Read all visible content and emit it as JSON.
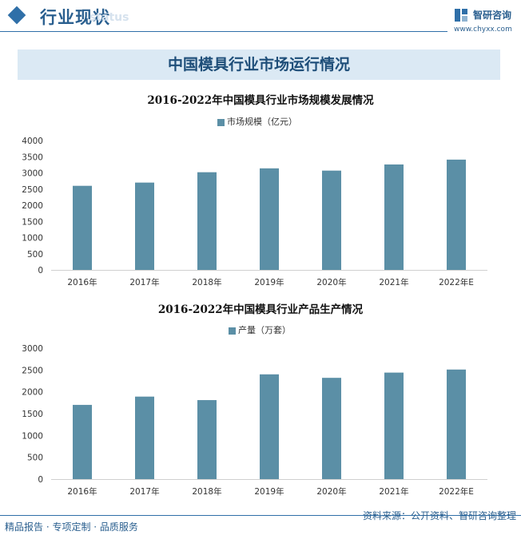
{
  "header": {
    "section_title": "行业现状",
    "ghost_text": "status"
  },
  "logo": {
    "name": "智研咨询",
    "url": "www.chyxx.com"
  },
  "banner": {
    "title": "中国模具行业市场运行情况"
  },
  "colors": {
    "bar": "#5b8fa6",
    "axis": "#d0d0d0",
    "accent": "#2f6fa8"
  },
  "chart_data": [
    {
      "type": "bar",
      "title": "2016-2022年中国模具行业市场规模发展情况",
      "categories": [
        "2016年",
        "2017年",
        "2018年",
        "2019年",
        "2020年",
        "2021年",
        "2022年E"
      ],
      "series": [
        {
          "name": "市场规模（亿元）",
          "values": [
            2600,
            2700,
            3020,
            3140,
            3070,
            3260,
            3410
          ]
        }
      ],
      "ylim": [
        0,
        4000
      ],
      "yticks": [
        0,
        500,
        1000,
        1500,
        2000,
        2500,
        3000,
        3500,
        4000
      ],
      "legend": "top-center",
      "grid": false
    },
    {
      "type": "bar",
      "title": "2016-2022年中国模具行业产品生产情况",
      "categories": [
        "2016年",
        "2017年",
        "2018年",
        "2019年",
        "2020年",
        "2021年",
        "2022年E"
      ],
      "series": [
        {
          "name": "产量（万套）",
          "values": [
            1700,
            1890,
            1810,
            2400,
            2320,
            2440,
            2510
          ]
        }
      ],
      "ylim": [
        0,
        3000
      ],
      "yticks": [
        0,
        500,
        1000,
        1500,
        2000,
        2500,
        3000
      ],
      "legend": "top-center",
      "grid": false
    }
  ],
  "footer": {
    "left": "精品报告 · 专项定制 · 品质服务",
    "right": "资料来源：公开资料、智研咨询整理"
  }
}
